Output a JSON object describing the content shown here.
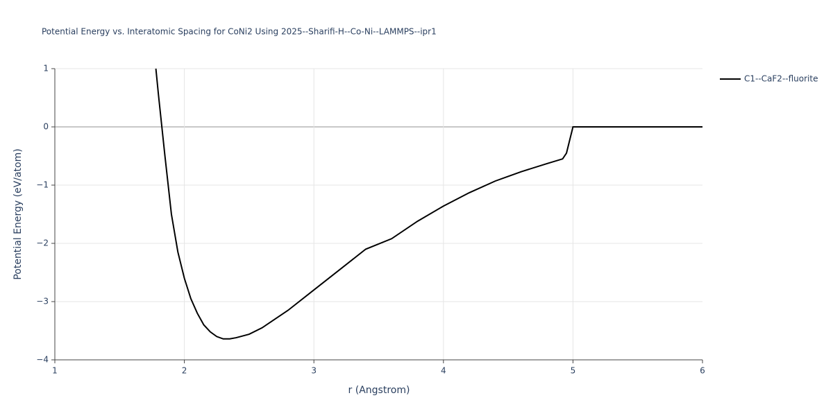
{
  "chart_data": {
    "type": "line",
    "title": "Potential Energy vs. Interatomic Spacing for CoNi2 Using 2025--Sharifi-H--Co-Ni--LAMMPS--ipr1",
    "x_label": "r (Angstrom)",
    "y_label": "Potential Energy (eV/atom)",
    "x": [
      1.78,
      1.8,
      1.85,
      1.9,
      1.95,
      2.0,
      2.05,
      2.1,
      2.15,
      2.2,
      2.25,
      2.3,
      2.35,
      2.4,
      2.5,
      2.6,
      2.8,
      3.0,
      3.2,
      3.4,
      3.6,
      3.8,
      4.0,
      4.2,
      4.4,
      4.6,
      4.8,
      4.92,
      4.95,
      5.0,
      6.0
    ],
    "series": [
      {
        "name": "C1--CaF2--fluorite",
        "color": "#000000",
        "values": [
          1.0,
          0.55,
          -0.5,
          -1.5,
          -2.15,
          -2.6,
          -2.95,
          -3.2,
          -3.4,
          -3.52,
          -3.6,
          -3.64,
          -3.64,
          -3.62,
          -3.56,
          -3.45,
          -3.15,
          -2.8,
          -2.45,
          -2.1,
          -1.92,
          -1.62,
          -1.36,
          -1.13,
          -0.93,
          -0.77,
          -0.63,
          -0.55,
          -0.45,
          0.0,
          0.0
        ]
      }
    ],
    "xlim": [
      1,
      6
    ],
    "ylim": [
      -4,
      1
    ],
    "xticks": [
      1,
      2,
      3,
      4,
      5,
      6
    ],
    "yticks": [
      {
        "value": -4,
        "label": "−4"
      },
      {
        "value": -3,
        "label": "−3"
      },
      {
        "value": -2,
        "label": "−2"
      },
      {
        "value": -1,
        "label": "−1"
      },
      0,
      1
    ],
    "grid": true,
    "legend": "right"
  }
}
